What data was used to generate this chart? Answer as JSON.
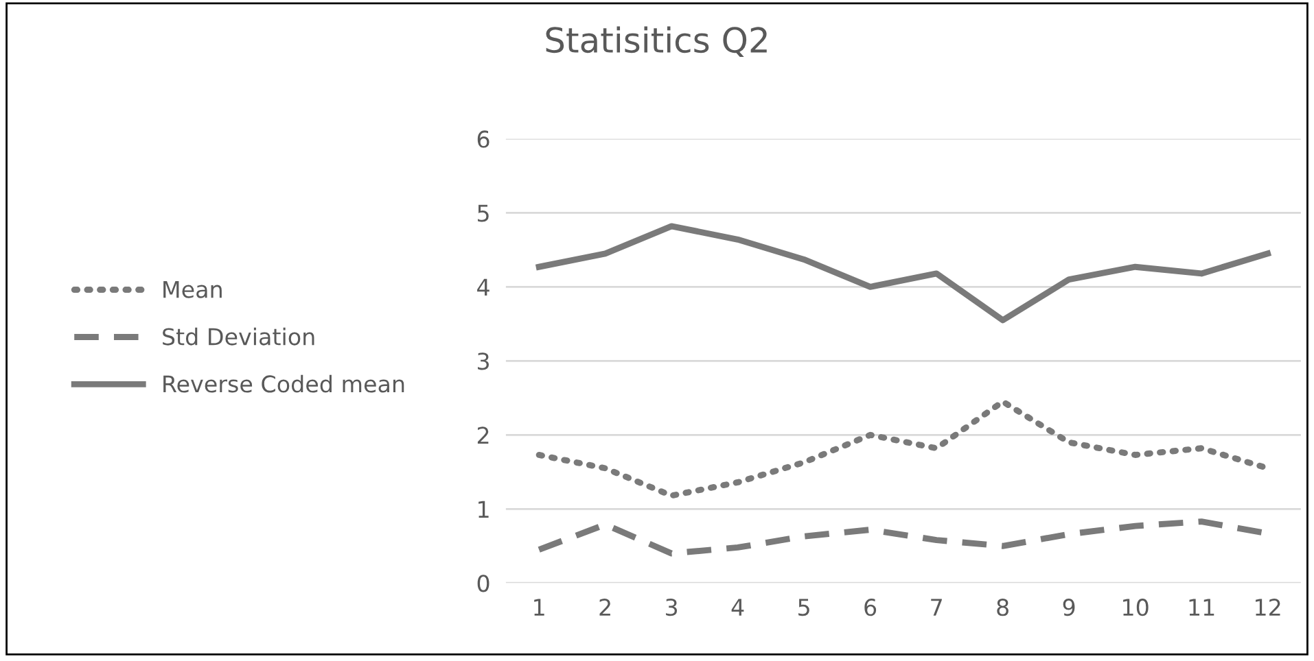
{
  "chart_data": {
    "type": "line",
    "title": "Statisitics Q2",
    "categories": [
      "1",
      "2",
      "3",
      "4",
      "5",
      "6",
      "7",
      "8",
      "9",
      "10",
      "11",
      "12"
    ],
    "series": [
      {
        "name": "Mean",
        "color": "#7a7a7a",
        "line_style": "dotted",
        "values": [
          1.73,
          1.55,
          1.18,
          1.36,
          1.63,
          2.0,
          1.82,
          2.45,
          1.9,
          1.73,
          1.82,
          1.55
        ]
      },
      {
        "name": "Std Deviation",
        "color": "#7a7a7a",
        "line_style": "dashed",
        "values": [
          0.45,
          0.79,
          0.4,
          0.48,
          0.63,
          0.72,
          0.58,
          0.5,
          0.66,
          0.77,
          0.83,
          0.67
        ]
      },
      {
        "name": "Reverse Coded mean",
        "color": "#7a7a7a",
        "line_style": "solid",
        "values": [
          4.27,
          4.45,
          4.82,
          4.64,
          4.37,
          4.0,
          4.18,
          3.55,
          4.1,
          4.27,
          4.18,
          4.45
        ]
      }
    ],
    "ylim": [
      0,
      6
    ],
    "yticks": [
      0,
      1,
      2,
      3,
      4,
      5,
      6
    ],
    "grid": "y",
    "legend": "left",
    "marker": "none"
  }
}
